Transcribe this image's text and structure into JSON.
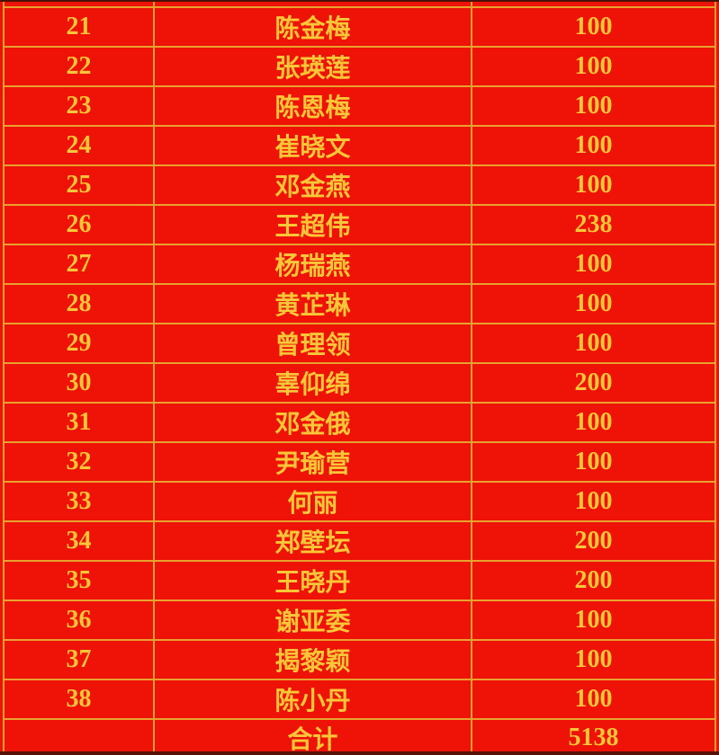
{
  "colors": {
    "background_red": "#ee1207",
    "border_gold": "#e8a22f",
    "text_gold": "#f9c737",
    "edge_dark": "#4a1106"
  },
  "table": {
    "rows": [
      {
        "no": "21",
        "name": "陈金梅",
        "amount": "100"
      },
      {
        "no": "22",
        "name": "张瑛莲",
        "amount": "100"
      },
      {
        "no": "23",
        "name": "陈恩梅",
        "amount": "100"
      },
      {
        "no": "24",
        "name": "崔晓文",
        "amount": "100"
      },
      {
        "no": "25",
        "name": "邓金燕",
        "amount": "100"
      },
      {
        "no": "26",
        "name": "王超伟",
        "amount": "238"
      },
      {
        "no": "27",
        "name": "杨瑞燕",
        "amount": "100"
      },
      {
        "no": "28",
        "name": "黄芷琳",
        "amount": "100"
      },
      {
        "no": "29",
        "name": "曾理领",
        "amount": "100"
      },
      {
        "no": "30",
        "name": "辜仰绵",
        "amount": "200"
      },
      {
        "no": "31",
        "name": "邓金俄",
        "amount": "100"
      },
      {
        "no": "32",
        "name": "尹瑜营",
        "amount": "100"
      },
      {
        "no": "33",
        "name": "何丽",
        "amount": "100"
      },
      {
        "no": "34",
        "name": "郑壁坛",
        "amount": "200"
      },
      {
        "no": "35",
        "name": "王晓丹",
        "amount": "200"
      },
      {
        "no": "36",
        "name": "谢亚委",
        "amount": "100"
      },
      {
        "no": "37",
        "name": "揭黎颖",
        "amount": "100"
      },
      {
        "no": "38",
        "name": "陈小丹",
        "amount": "100"
      }
    ],
    "total_label": "合计",
    "total_amount": "5138"
  }
}
